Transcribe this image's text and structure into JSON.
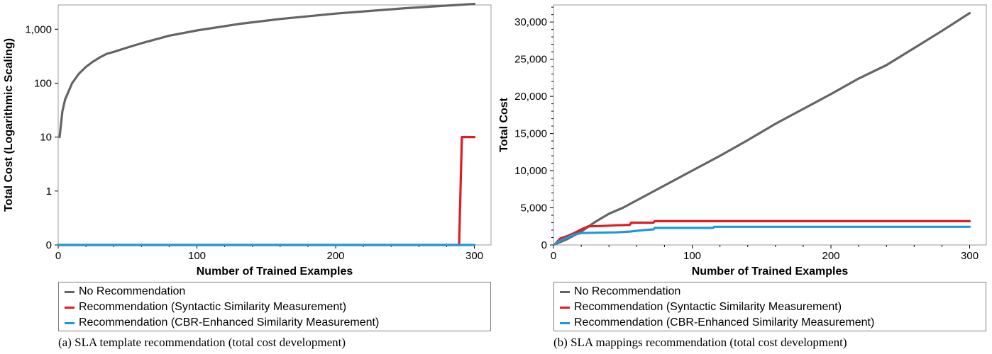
{
  "legend_items": [
    {
      "label": "No Recommendation",
      "color": "#646464"
    },
    {
      "label": "Recommendation (Syntactic Similarity Measurement)",
      "color": "#e01b24"
    },
    {
      "label": "Recommendation (CBR-Enhanced Similarity Measurement)",
      "color": "#1c9ad6"
    }
  ],
  "captions": {
    "left": "(a) SLA template recommendation (total cost development)",
    "right": "(b) SLA mappings recommendation (total cost development)"
  },
  "chart_data": [
    {
      "type": "line",
      "xlabel": "Number of Trained Examples",
      "ylabel": "Total Cost (Logarithmic Scaling)",
      "yscale": "log",
      "xlim": [
        0,
        312
      ],
      "x_ticks": [
        0,
        100,
        200,
        300
      ],
      "x_tick_labels": [
        "0",
        "100",
        "200",
        "300"
      ],
      "y_ticks": [
        0,
        1,
        10,
        100,
        1000
      ],
      "y_tick_labels": [
        "0",
        "1",
        "10",
        "100",
        "1,000"
      ],
      "grid": false,
      "legend_position": "bottom",
      "series": [
        {
          "name": "No Recommendation",
          "color": "#646464",
          "x": [
            1,
            3,
            5,
            10,
            15,
            20,
            25,
            30,
            35,
            40,
            50,
            60,
            80,
            100,
            130,
            160,
            200,
            250,
            300
          ],
          "y": [
            10,
            30,
            50,
            100,
            150,
            200,
            250,
            300,
            350,
            380,
            460,
            550,
            760,
            950,
            1250,
            1550,
            1950,
            2450,
            2950
          ]
        },
        {
          "name": "Recommendation (Syntactic Similarity Measurement)",
          "color": "#e01b24",
          "x": [
            0,
            289,
            291,
            292,
            300
          ],
          "y": [
            0,
            0,
            10,
            10,
            10
          ]
        },
        {
          "name": "Recommendation (CBR-Enhanced Similarity Measurement)",
          "color": "#1c9ad6",
          "x": [
            0,
            300
          ],
          "y": [
            0,
            0
          ]
        }
      ]
    },
    {
      "type": "line",
      "xlabel": "Number of Trained Examples",
      "ylabel": "Total Cost",
      "yscale": "linear",
      "xlim": [
        0,
        312
      ],
      "ylim": [
        0,
        32300
      ],
      "x_ticks": [
        0,
        100,
        200,
        300
      ],
      "x_tick_labels": [
        "0",
        "100",
        "200",
        "300"
      ],
      "y_ticks": [
        0,
        5000,
        10000,
        15000,
        20000,
        25000,
        30000
      ],
      "y_tick_labels": [
        "0",
        "5,000",
        "10,000",
        "15,000",
        "20,000",
        "25,000",
        "30,000"
      ],
      "grid": false,
      "legend_position": "bottom",
      "series": [
        {
          "name": "No Recommendation",
          "color": "#646464",
          "x": [
            1,
            10,
            20,
            30,
            40,
            50,
            60,
            70,
            80,
            100,
            120,
            140,
            160,
            180,
            200,
            220,
            240,
            260,
            280,
            300
          ],
          "y": [
            100,
            800,
            1800,
            3100,
            4200,
            5000,
            6000,
            7000,
            8000,
            10000,
            12000,
            14100,
            16300,
            18300,
            20300,
            22400,
            24200,
            26500,
            28800,
            31200
          ]
        },
        {
          "name": "Recommendation (Syntactic Similarity Measurement)",
          "color": "#e01b24",
          "x": [
            1,
            5,
            10,
            15,
            20,
            25,
            35,
            45,
            55,
            56,
            72,
            73,
            300
          ],
          "y": [
            100,
            900,
            1200,
            1600,
            2100,
            2500,
            2550,
            2650,
            2700,
            3000,
            3000,
            3200,
            3200
          ]
        },
        {
          "name": "Recommendation (CBR-Enhanced Similarity Measurement)",
          "color": "#1c9ad6",
          "x": [
            1,
            5,
            10,
            15,
            20,
            30,
            45,
            55,
            65,
            72,
            73,
            115,
            116,
            300
          ],
          "y": [
            100,
            600,
            1000,
            1400,
            1600,
            1650,
            1700,
            1800,
            2000,
            2100,
            2300,
            2300,
            2450,
            2450
          ]
        }
      ]
    }
  ]
}
